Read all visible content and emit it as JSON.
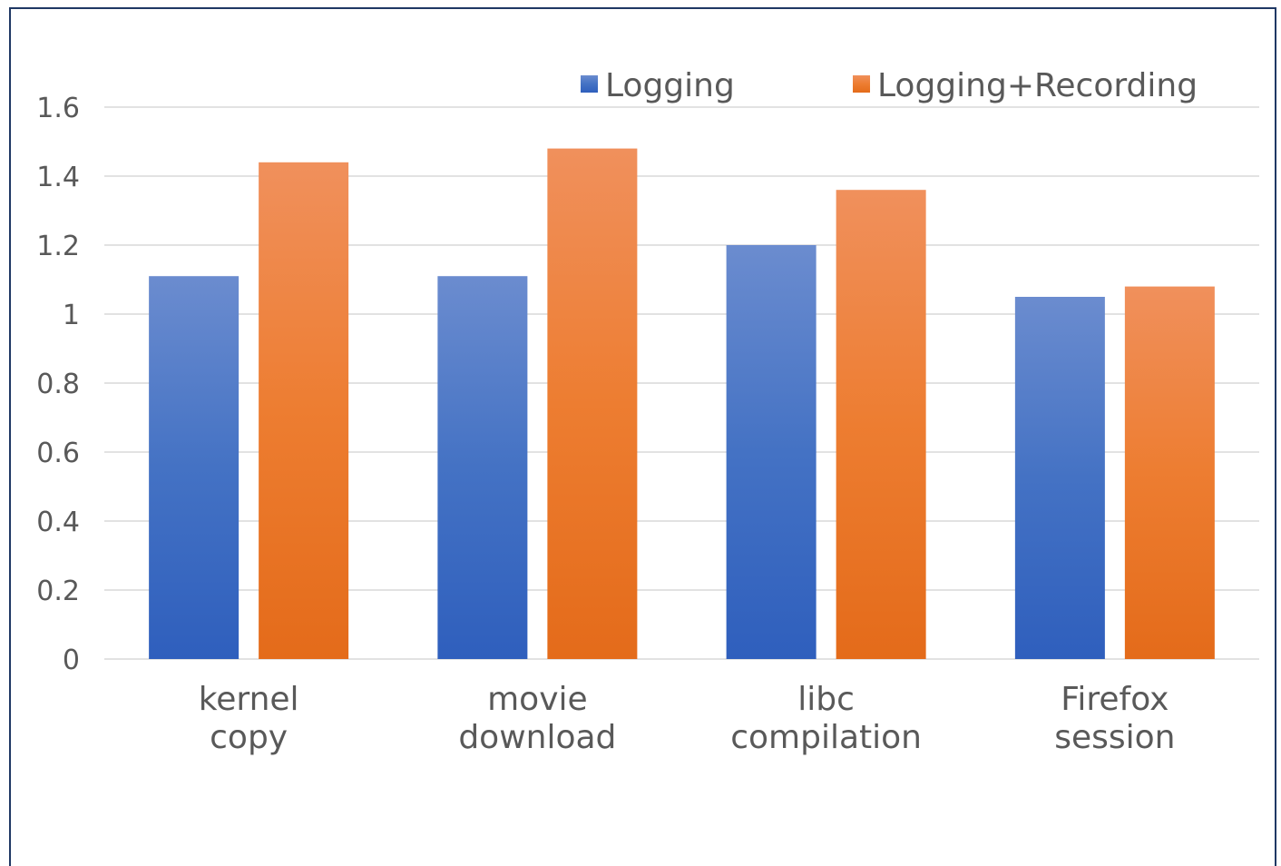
{
  "chart_data": {
    "type": "bar",
    "categories": [
      [
        "kernel",
        "copy"
      ],
      [
        "movie",
        "download"
      ],
      [
        "libc",
        "compilation"
      ],
      [
        "Firefox",
        "session"
      ]
    ],
    "series": [
      {
        "name": "Logging",
        "values": [
          1.11,
          1.11,
          1.2,
          1.05
        ],
        "color": "#4472c4"
      },
      {
        "name": "Logging+Recording",
        "values": [
          1.44,
          1.48,
          1.36,
          1.08
        ],
        "color": "#ed7d31"
      }
    ],
    "ylim": [
      0,
      1.6
    ],
    "yticks": [
      "0",
      "0.2",
      "0.4",
      "0.6",
      "0.8",
      "1",
      "1.2",
      "1.4",
      "1.6"
    ],
    "grid": true,
    "legend_position": "top-right",
    "title": "",
    "xlabel": "",
    "ylabel": ""
  }
}
